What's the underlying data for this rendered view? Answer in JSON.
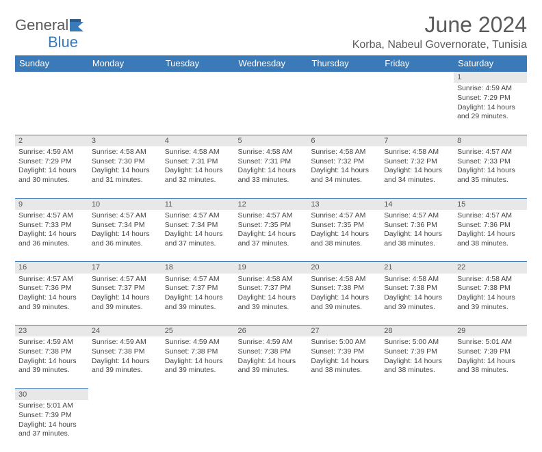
{
  "brand": {
    "general": "General",
    "blue": "Blue"
  },
  "title": "June 2024",
  "location": "Korba, Nabeul Governorate, Tunisia",
  "colors": {
    "header_bg": "#3a7ab8",
    "header_text": "#ffffff",
    "daynum_bg": "#e8e8e8",
    "text": "#444444",
    "title_text": "#5a5a5a",
    "row_border": "#3a7ab8"
  },
  "fonts": {
    "title_size": 32,
    "location_size": 16,
    "dayheader_size": 13,
    "cell_size": 10.5
  },
  "day_headers": [
    "Sunday",
    "Monday",
    "Tuesday",
    "Wednesday",
    "Thursday",
    "Friday",
    "Saturday"
  ],
  "weeks": [
    [
      null,
      null,
      null,
      null,
      null,
      null,
      {
        "n": "1",
        "sr": "Sunrise: 4:59 AM",
        "ss": "Sunset: 7:29 PM",
        "dl": "Daylight: 14 hours and 29 minutes."
      }
    ],
    [
      {
        "n": "2",
        "sr": "Sunrise: 4:59 AM",
        "ss": "Sunset: 7:29 PM",
        "dl": "Daylight: 14 hours and 30 minutes."
      },
      {
        "n": "3",
        "sr": "Sunrise: 4:58 AM",
        "ss": "Sunset: 7:30 PM",
        "dl": "Daylight: 14 hours and 31 minutes."
      },
      {
        "n": "4",
        "sr": "Sunrise: 4:58 AM",
        "ss": "Sunset: 7:31 PM",
        "dl": "Daylight: 14 hours and 32 minutes."
      },
      {
        "n": "5",
        "sr": "Sunrise: 4:58 AM",
        "ss": "Sunset: 7:31 PM",
        "dl": "Daylight: 14 hours and 33 minutes."
      },
      {
        "n": "6",
        "sr": "Sunrise: 4:58 AM",
        "ss": "Sunset: 7:32 PM",
        "dl": "Daylight: 14 hours and 34 minutes."
      },
      {
        "n": "7",
        "sr": "Sunrise: 4:58 AM",
        "ss": "Sunset: 7:32 PM",
        "dl": "Daylight: 14 hours and 34 minutes."
      },
      {
        "n": "8",
        "sr": "Sunrise: 4:57 AM",
        "ss": "Sunset: 7:33 PM",
        "dl": "Daylight: 14 hours and 35 minutes."
      }
    ],
    [
      {
        "n": "9",
        "sr": "Sunrise: 4:57 AM",
        "ss": "Sunset: 7:33 PM",
        "dl": "Daylight: 14 hours and 36 minutes."
      },
      {
        "n": "10",
        "sr": "Sunrise: 4:57 AM",
        "ss": "Sunset: 7:34 PM",
        "dl": "Daylight: 14 hours and 36 minutes."
      },
      {
        "n": "11",
        "sr": "Sunrise: 4:57 AM",
        "ss": "Sunset: 7:34 PM",
        "dl": "Daylight: 14 hours and 37 minutes."
      },
      {
        "n": "12",
        "sr": "Sunrise: 4:57 AM",
        "ss": "Sunset: 7:35 PM",
        "dl": "Daylight: 14 hours and 37 minutes."
      },
      {
        "n": "13",
        "sr": "Sunrise: 4:57 AM",
        "ss": "Sunset: 7:35 PM",
        "dl": "Daylight: 14 hours and 38 minutes."
      },
      {
        "n": "14",
        "sr": "Sunrise: 4:57 AM",
        "ss": "Sunset: 7:36 PM",
        "dl": "Daylight: 14 hours and 38 minutes."
      },
      {
        "n": "15",
        "sr": "Sunrise: 4:57 AM",
        "ss": "Sunset: 7:36 PM",
        "dl": "Daylight: 14 hours and 38 minutes."
      }
    ],
    [
      {
        "n": "16",
        "sr": "Sunrise: 4:57 AM",
        "ss": "Sunset: 7:36 PM",
        "dl": "Daylight: 14 hours and 39 minutes."
      },
      {
        "n": "17",
        "sr": "Sunrise: 4:57 AM",
        "ss": "Sunset: 7:37 PM",
        "dl": "Daylight: 14 hours and 39 minutes."
      },
      {
        "n": "18",
        "sr": "Sunrise: 4:57 AM",
        "ss": "Sunset: 7:37 PM",
        "dl": "Daylight: 14 hours and 39 minutes."
      },
      {
        "n": "19",
        "sr": "Sunrise: 4:58 AM",
        "ss": "Sunset: 7:37 PM",
        "dl": "Daylight: 14 hours and 39 minutes."
      },
      {
        "n": "20",
        "sr": "Sunrise: 4:58 AM",
        "ss": "Sunset: 7:38 PM",
        "dl": "Daylight: 14 hours and 39 minutes."
      },
      {
        "n": "21",
        "sr": "Sunrise: 4:58 AM",
        "ss": "Sunset: 7:38 PM",
        "dl": "Daylight: 14 hours and 39 minutes."
      },
      {
        "n": "22",
        "sr": "Sunrise: 4:58 AM",
        "ss": "Sunset: 7:38 PM",
        "dl": "Daylight: 14 hours and 39 minutes."
      }
    ],
    [
      {
        "n": "23",
        "sr": "Sunrise: 4:59 AM",
        "ss": "Sunset: 7:38 PM",
        "dl": "Daylight: 14 hours and 39 minutes."
      },
      {
        "n": "24",
        "sr": "Sunrise: 4:59 AM",
        "ss": "Sunset: 7:38 PM",
        "dl": "Daylight: 14 hours and 39 minutes."
      },
      {
        "n": "25",
        "sr": "Sunrise: 4:59 AM",
        "ss": "Sunset: 7:38 PM",
        "dl": "Daylight: 14 hours and 39 minutes."
      },
      {
        "n": "26",
        "sr": "Sunrise: 4:59 AM",
        "ss": "Sunset: 7:38 PM",
        "dl": "Daylight: 14 hours and 39 minutes."
      },
      {
        "n": "27",
        "sr": "Sunrise: 5:00 AM",
        "ss": "Sunset: 7:39 PM",
        "dl": "Daylight: 14 hours and 38 minutes."
      },
      {
        "n": "28",
        "sr": "Sunrise: 5:00 AM",
        "ss": "Sunset: 7:39 PM",
        "dl": "Daylight: 14 hours and 38 minutes."
      },
      {
        "n": "29",
        "sr": "Sunrise: 5:01 AM",
        "ss": "Sunset: 7:39 PM",
        "dl": "Daylight: 14 hours and 38 minutes."
      }
    ],
    [
      {
        "n": "30",
        "sr": "Sunrise: 5:01 AM",
        "ss": "Sunset: 7:39 PM",
        "dl": "Daylight: 14 hours and 37 minutes."
      },
      null,
      null,
      null,
      null,
      null,
      null
    ]
  ]
}
